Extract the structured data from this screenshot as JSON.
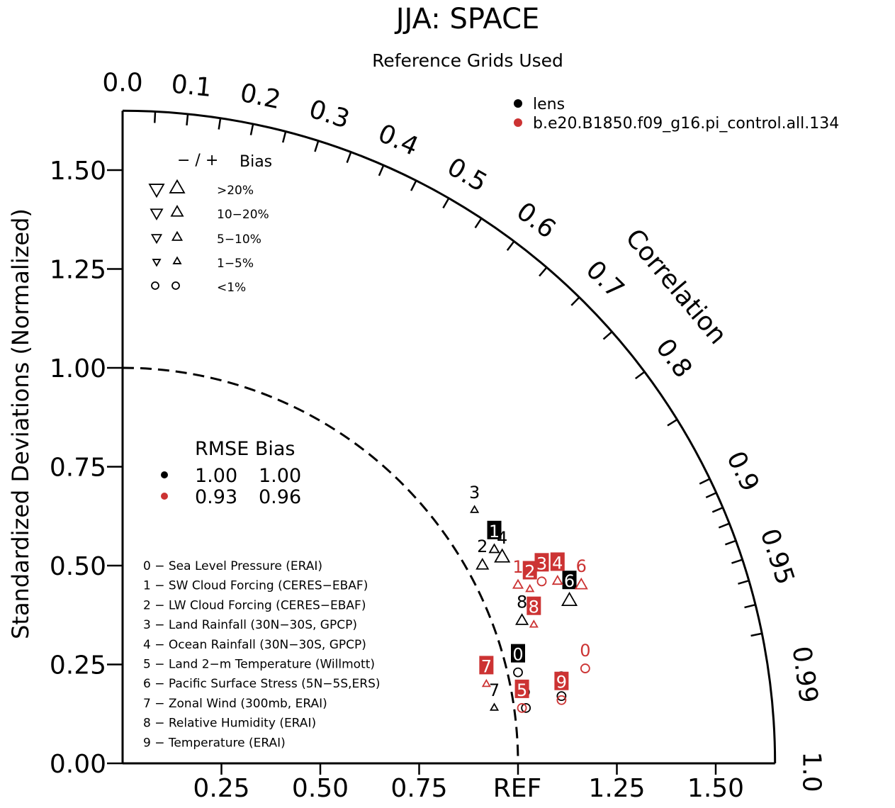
{
  "chart_data": {
    "type": "taylor",
    "title": "JJA: SPACE",
    "subtitle": "Reference Grids Used",
    "ylabel": "Standardized Deviations (Normalized)",
    "xlabel_ref": "REF",
    "corr_title": "Correlation",
    "std_range": [
      0,
      1.65
    ],
    "y_ticks": [
      "0.00",
      "0.25",
      "0.50",
      "0.75",
      "1.00",
      "1.25",
      "1.50"
    ],
    "x_ticks": [
      "0.25",
      "0.50",
      "0.75",
      "1.25",
      "1.50"
    ],
    "corr_ticks": [
      "0.0",
      "0.1",
      "0.2",
      "0.3",
      "0.4",
      "0.5",
      "0.6",
      "0.7",
      "0.8",
      "0.9",
      "0.95",
      "0.99",
      "1.0"
    ],
    "corr_tick_values": [
      0.0,
      0.1,
      0.2,
      0.3,
      0.4,
      0.5,
      0.6,
      0.7,
      0.8,
      0.9,
      0.95,
      0.99,
      1.0
    ],
    "legend": [
      {
        "name": "lens",
        "color": "#000000"
      },
      {
        "name": "b.e20.B1850.f09_g16.pi_control.all.134",
        "color": "#cc3333"
      }
    ],
    "bias_legend": {
      "header_sign": "− / +",
      "header_label": "Bias",
      "rows": [
        ">20%",
        "10−20%",
        "5−10%",
        "1−5%",
        "<1%"
      ]
    },
    "summary": {
      "header": "RMSE Bias",
      "rows": [
        {
          "color": "#000000",
          "rmse": "1.00",
          "bias": "1.00"
        },
        {
          "color": "#cc3333",
          "rmse": "0.93",
          "bias": "0.96"
        }
      ]
    },
    "variables": [
      "0 − Sea Level Pressure (ERAI)",
      "1 − SW Cloud Forcing (CERES−EBAF)",
      "2 − LW Cloud Forcing (CERES−EBAF)",
      "3 − Land Rainfall (30N−30S, GPCP)",
      "4 − Ocean Rainfall (30N−30S, GPCP)",
      "5 − Land 2−m Temperature (Willmott)",
      "6 − Pacific Surface Stress (5N−5S,ERS)",
      "7 − Zonal Wind (300mb, ERAI)",
      "8 − Relative Humidity (ERAI)",
      "9 − Temperature (ERAI)"
    ],
    "series": [
      {
        "name": "lens",
        "color": "#000000",
        "points": [
          {
            "id": "0",
            "x": 1.0,
            "y": 0.23,
            "marker": "circle",
            "size": 1,
            "boxed": true
          },
          {
            "id": "1",
            "x": 0.94,
            "y": 0.54,
            "marker": "tri-up",
            "size": 2,
            "boxed": true
          },
          {
            "id": "2",
            "x": 0.91,
            "y": 0.5,
            "marker": "tri-up",
            "size": 3,
            "boxed": false
          },
          {
            "id": "3",
            "x": 0.89,
            "y": 0.64,
            "marker": "tri-up",
            "size": 1,
            "boxed": false
          },
          {
            "id": "4",
            "x": 0.96,
            "y": 0.52,
            "marker": "tri-up",
            "size": 4,
            "boxed": false
          },
          {
            "id": "5",
            "x": 1.02,
            "y": 0.14,
            "marker": "circle",
            "size": 1,
            "boxed": false
          },
          {
            "id": "6",
            "x": 1.13,
            "y": 0.41,
            "marker": "tri-up",
            "size": 4,
            "boxed": true
          },
          {
            "id": "7",
            "x": 0.94,
            "y": 0.14,
            "marker": "tri-up",
            "size": 1,
            "boxed": false
          },
          {
            "id": "8",
            "x": 1.01,
            "y": 0.36,
            "marker": "tri-up",
            "size": 3,
            "boxed": false
          },
          {
            "id": "9",
            "x": 1.11,
            "y": 0.17,
            "marker": "circle",
            "size": 1,
            "boxed": false
          }
        ]
      },
      {
        "name": "b.e20.B1850.f09_g16.pi_control.all.134",
        "color": "#cc3333",
        "points": [
          {
            "id": "0",
            "x": 1.17,
            "y": 0.24,
            "marker": "circle",
            "size": 1,
            "boxed": false
          },
          {
            "id": "1",
            "x": 1.0,
            "y": 0.45,
            "marker": "tri-up",
            "size": 2,
            "boxed": false
          },
          {
            "id": "2",
            "x": 1.03,
            "y": 0.44,
            "marker": "tri-up",
            "size": 1,
            "boxed": true
          },
          {
            "id": "3",
            "x": 1.06,
            "y": 0.46,
            "marker": "circle",
            "size": 1,
            "boxed": true
          },
          {
            "id": "4",
            "x": 1.1,
            "y": 0.46,
            "marker": "tri-up",
            "size": 2,
            "boxed": true
          },
          {
            "id": "5",
            "x": 1.01,
            "y": 0.14,
            "marker": "circle",
            "size": 1,
            "boxed": true
          },
          {
            "id": "6",
            "x": 1.16,
            "y": 0.45,
            "marker": "tri-up",
            "size": 3,
            "boxed": false
          },
          {
            "id": "7",
            "x": 0.92,
            "y": 0.2,
            "marker": "tri-up",
            "size": 1,
            "boxed": true
          },
          {
            "id": "8",
            "x": 1.04,
            "y": 0.35,
            "marker": "tri-up",
            "size": 1,
            "boxed": true
          },
          {
            "id": "9",
            "x": 1.11,
            "y": 0.16,
            "marker": "circle",
            "size": 1,
            "boxed": true
          }
        ]
      }
    ]
  }
}
